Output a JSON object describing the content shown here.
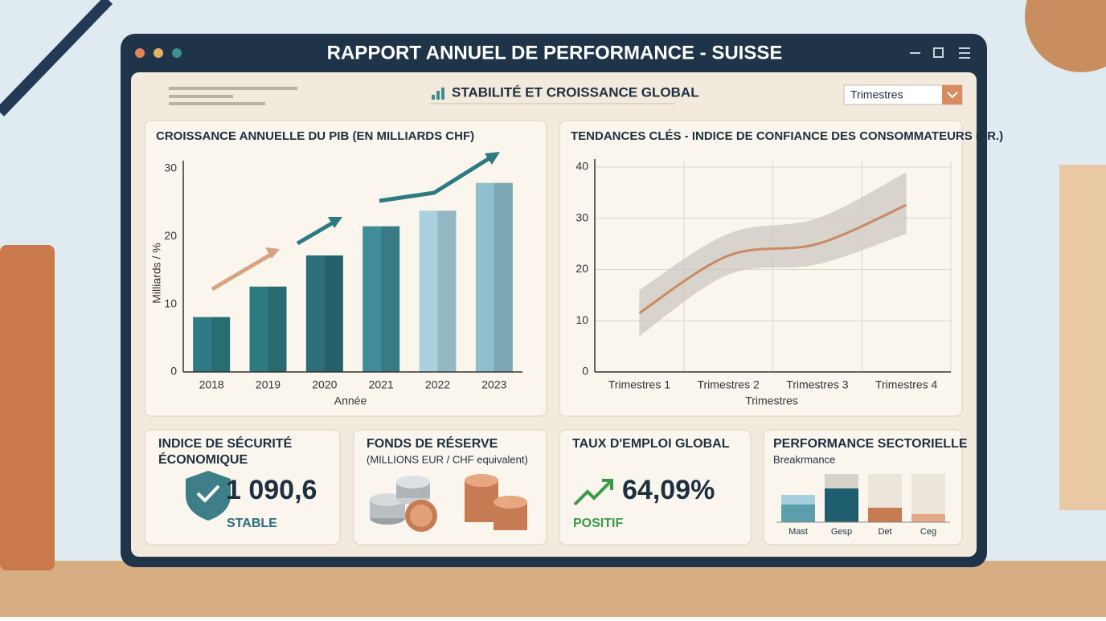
{
  "header": {
    "title": "RAPPORT ANNUEL DE PERFORMANCE - SUISSE",
    "subtitle": "STABILITÉ ET CROISSANCE GLOBAL",
    "dropdown": "Trimestres"
  },
  "chart_data": [
    {
      "type": "bar",
      "title": "CROISSANCE ANNUELLE DU PIB (EN MILLIARDS CHF)",
      "y_label": "Milliards / %",
      "x_label": "Année",
      "categories": [
        "2018",
        "2019",
        "2020",
        "2021",
        "2022",
        "2023"
      ],
      "values": [
        8.1,
        12.6,
        17.2,
        21.5,
        23.8,
        27.9
      ],
      "colors": [
        "#2f7b83",
        "#2d7a80",
        "#2a6f79",
        "#408d99",
        "#a9d2de",
        "#8fbfcd"
      ],
      "ylim": [
        0,
        30
      ],
      "yticks": [
        0,
        10,
        20,
        30
      ]
    },
    {
      "type": "line",
      "title": "TENDANCES CLÉS - INDICE DE CONFIANCE DES CONSOMMATEURS (FR.)",
      "x_label": "Trimestres",
      "categories": [
        "Trimestres 1",
        "Trimestres 2",
        "Trimestres 3",
        "Trimestres 4"
      ],
      "series": [
        {
          "color": "#c98a66",
          "values": [
            11.5,
            22.7,
            25,
            32.6
          ],
          "lower": [
            7,
            19,
            21,
            27
          ],
          "upper": [
            16,
            27,
            30,
            39
          ]
        }
      ],
      "ylim": [
        0,
        40
      ],
      "yticks": [
        0,
        10,
        20,
        30,
        40
      ],
      "grid": true
    }
  ],
  "cards": [
    {
      "title": "INDICE DE SÉCURITÉ ÉCONOMIQUE",
      "value": "1 090,6",
      "status": "STABLE"
    },
    {
      "title": "FONDS DE RÉSERVE",
      "subtitle": "(MILLIONS EUR / CHF equivalent)"
    },
    {
      "title": "TAUX D'EMPLOI GLOBAL",
      "value": "64,09%",
      "status": "POSITIF"
    },
    {
      "title": "PERFORMANCE SECTORIELLE",
      "subtitle": "Breakrmance",
      "labels": [
        "Mast",
        "Gesp",
        "Det",
        "Ceg"
      ]
    }
  ]
}
